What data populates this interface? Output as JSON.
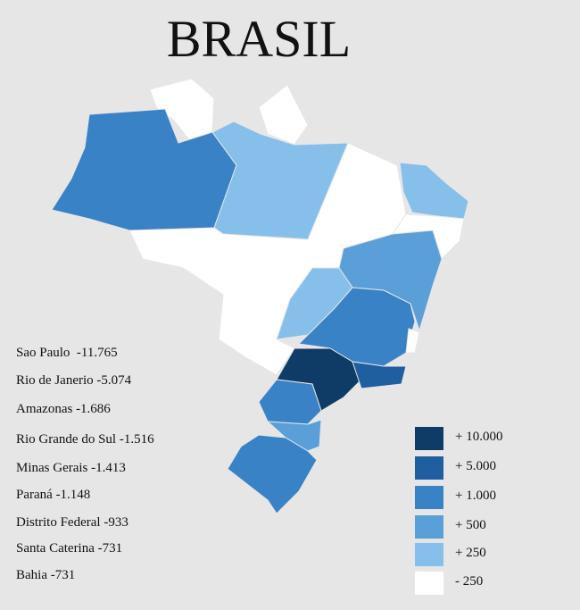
{
  "title": "BRASIL",
  "ranking": [
    {
      "name": "Sao Paulo",
      "value": "-11.765"
    },
    {
      "name": "Rio de Janerio",
      "value": "-5.074"
    },
    {
      "name": "Amazonas",
      "value": "-1.686"
    },
    {
      "name": "Rio Grande do Sul",
      "value": "-1.516"
    },
    {
      "name": "Minas Gerais",
      "value": "-1.413"
    },
    {
      "name": "Paraná",
      "value": "-1.148"
    },
    {
      "name": "Distrito Federal",
      "value": "-933"
    },
    {
      "name": "Santa Caterina",
      "value": "-731"
    },
    {
      "name": "Bahia",
      "value": "-731"
    }
  ],
  "legend": [
    {
      "label": "+ 10.000",
      "color": "#0f3c66"
    },
    {
      "label": "+ 5.000",
      "color": "#1f5fa0"
    },
    {
      "label": "+ 1.000",
      "color": "#3a82c6"
    },
    {
      "label": "+ 500",
      "color": "#5a9fd8"
    },
    {
      "label": "+ 250",
      "color": "#85bfea"
    },
    {
      "label": "- 250",
      "color": "#ffffff"
    }
  ]
}
